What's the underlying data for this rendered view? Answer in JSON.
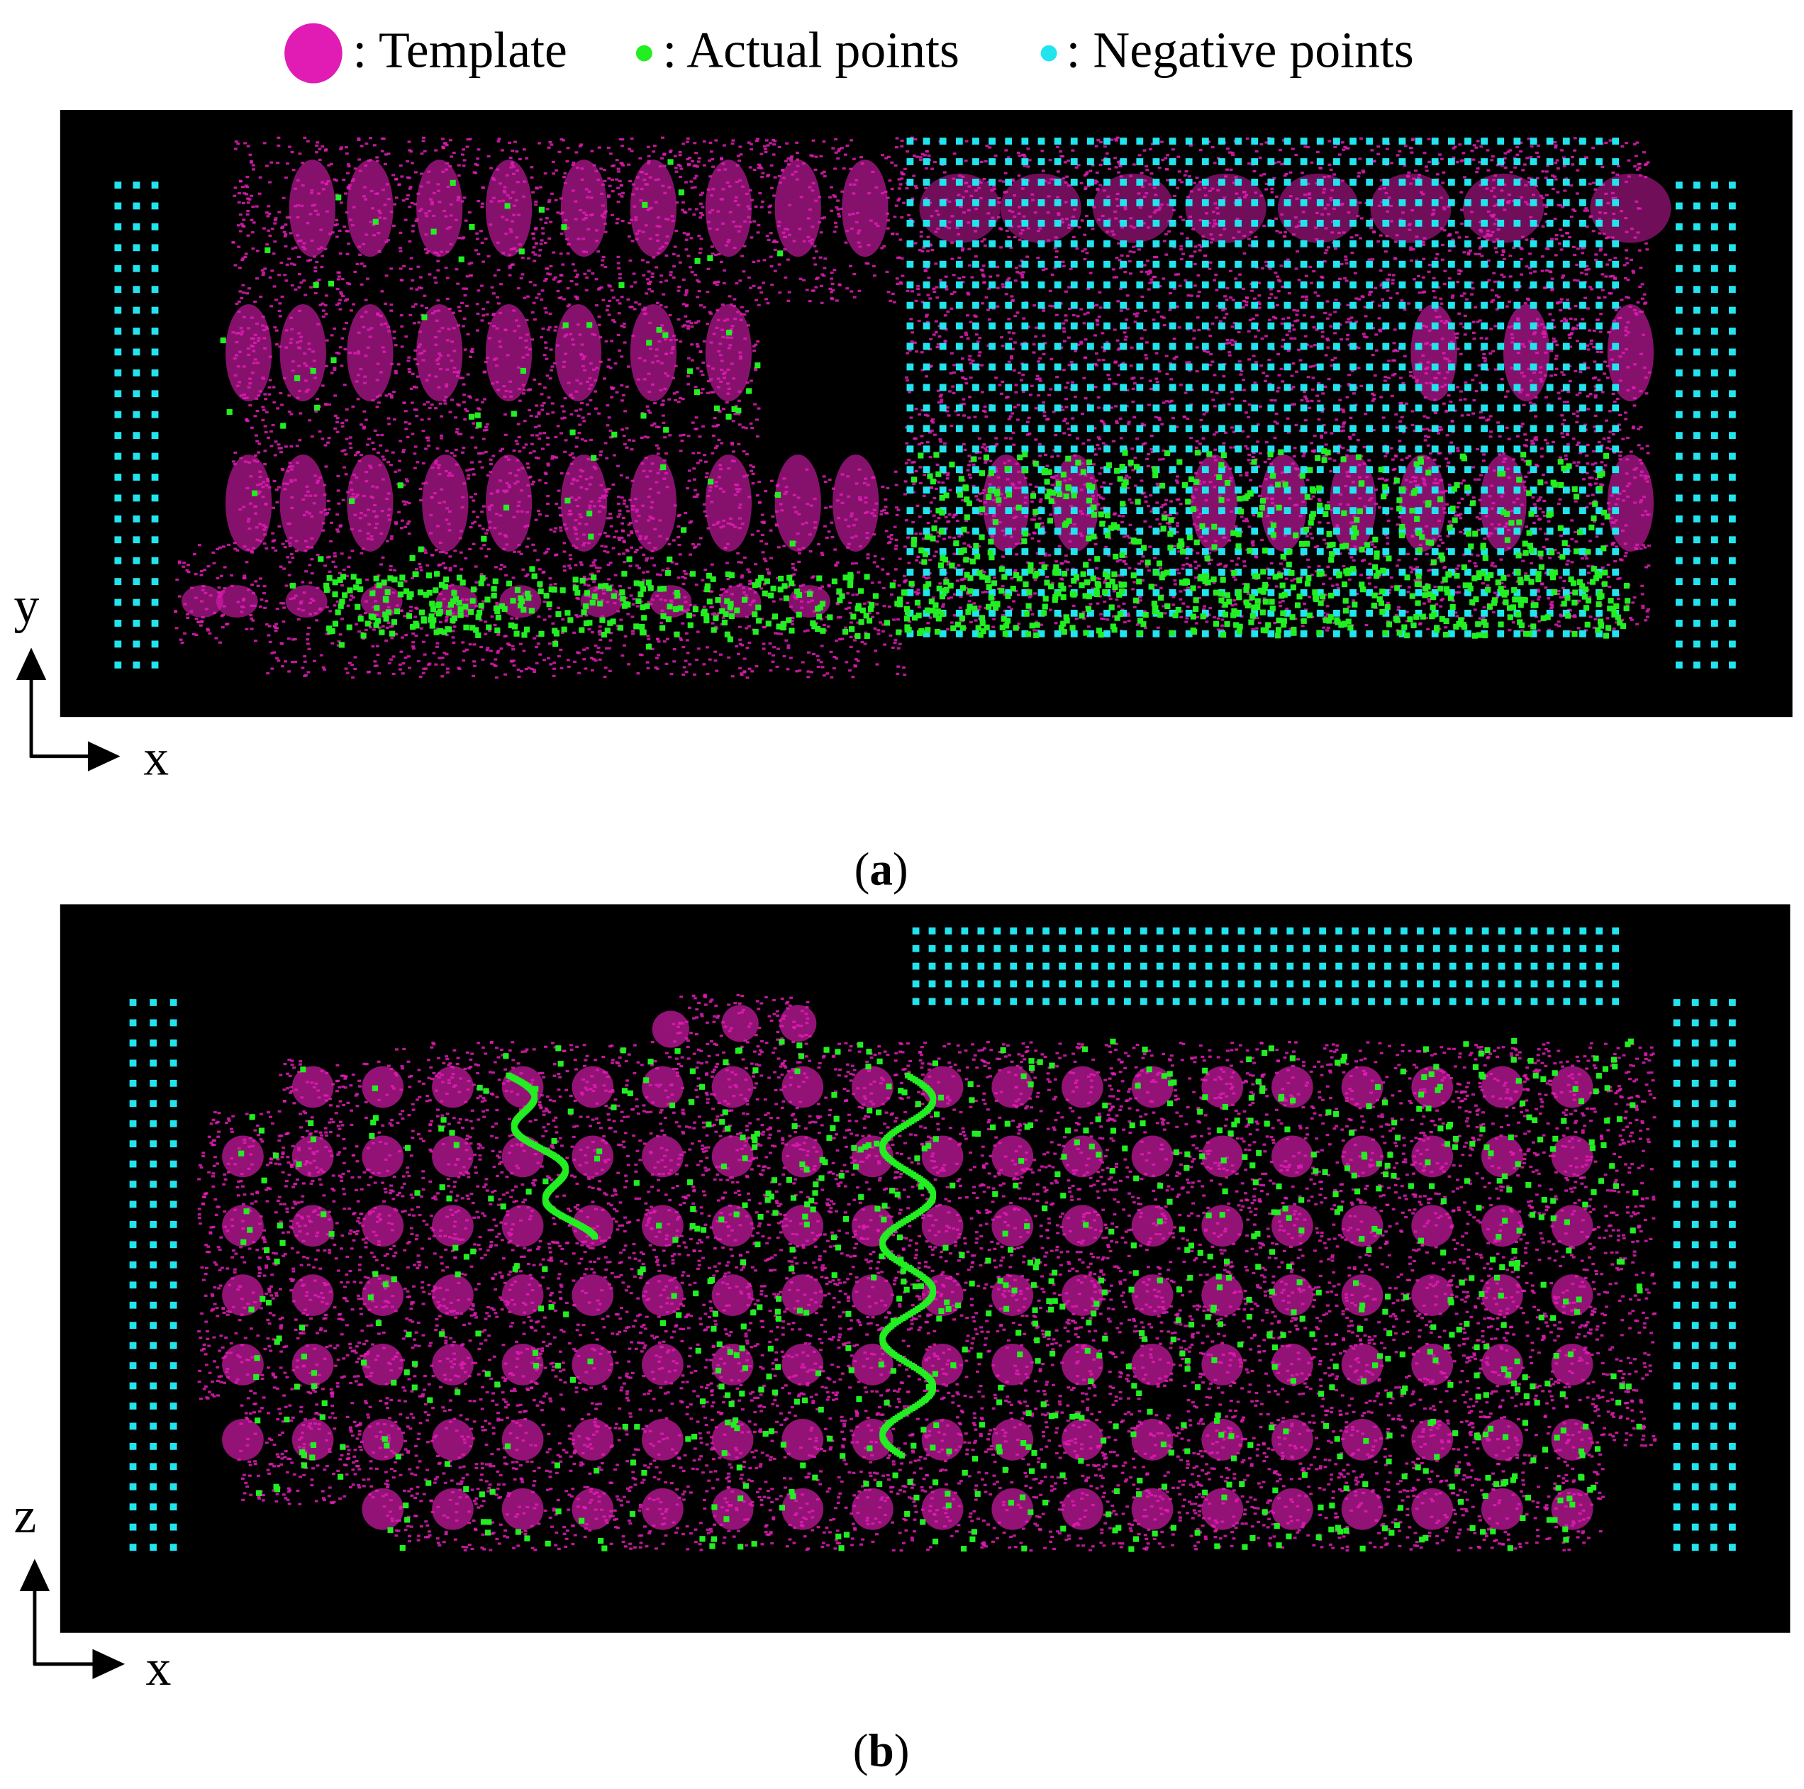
{
  "legend": {
    "template_label": ": Template",
    "actual_label": ": Actual points",
    "negative_label": ": Negative points"
  },
  "colors": {
    "template": "#e01cb4",
    "actual": "#22ee22",
    "negative": "#22e4ee",
    "background": "#000000"
  },
  "panel_a": {
    "caption_open": "(",
    "caption_letter": "a",
    "caption_close": ")",
    "axis_vertical": "y",
    "axis_horizontal": "x"
  },
  "panel_b": {
    "caption_open": "(",
    "caption_letter": "b",
    "caption_close": ")",
    "axis_vertical": "z",
    "axis_horizontal": "x"
  }
}
